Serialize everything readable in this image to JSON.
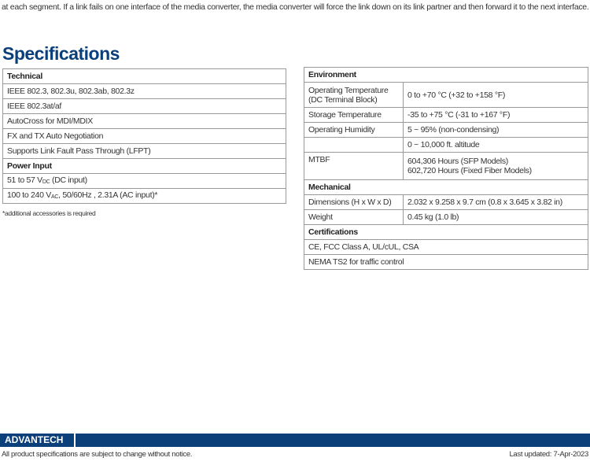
{
  "intro": "at each segment.  If a link fails on one interface of the media converter, the media converter will force the link down on its link partner and then forward it to the next interface.",
  "title": "Specifications",
  "technical": {
    "header": "Technical",
    "items": [
      "IEEE 802.3, 802.3u, 802.3ab, 802.3z",
      "IEEE 802.3at/af",
      "AutoCross for MDI/MDIX",
      "FX and TX Auto Negotiation",
      "Supports Link Fault Pass Through (LFPT)"
    ]
  },
  "power": {
    "header": "Power Input",
    "dc": {
      "a": "51 to 57 V",
      "sub": "DC",
      "b": " (DC input)"
    },
    "ac": {
      "a": "100 to 240 V",
      "sub": "AC",
      "b": ", 50/60Hz , 2.31A (AC input)*"
    }
  },
  "note": "*additional accessories is required",
  "environment": {
    "header": "Environment",
    "op_temp_k": "Operating Temperature (DC Terminal Block)",
    "op_temp_v": "0 to +70 °C (+32 to +158 °F)",
    "storage_k": "Storage Temperature",
    "storage_v": "-35 to +75 °C (-31 to +167 °F)",
    "humidity_k": "Operating Humidity",
    "humidity_v": "5 ~ 95% (non-condensing)",
    "altitude_v": "0 ~ 10,000 ft. altitude",
    "mtbf_k": "MTBF",
    "mtbf_v1": "604,306 Hours (SFP Models)",
    "mtbf_v2": "602,720 Hours (Fixed Fiber Models)"
  },
  "mechanical": {
    "header": "Mechanical",
    "dim_k": "Dimensions (H x W x D)",
    "dim_v": "2.032 x 9.258 x 9.7 cm (0.8 x 3.645 x 3.82 in)",
    "weight_k": "Weight",
    "weight_v": "0.45 kg (1.0 lb)"
  },
  "certifications": {
    "header": "Certifications",
    "items": [
      "CE, FCC Class A, UL/cUL, CSA",
      "NEMA TS2 for traffic control"
    ]
  },
  "footer": {
    "logo": "ADVANTECH",
    "disclaimer": "All product specifications are subject to change without notice.",
    "updated": "Last updated: 7-Apr-2023",
    "brand_color": "#0b3f7a"
  }
}
